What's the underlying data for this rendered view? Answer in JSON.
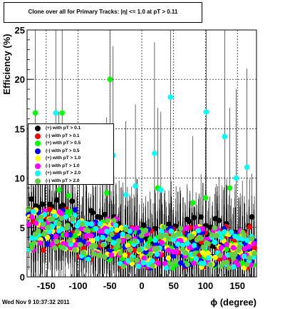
{
  "title": "Clone  over all for Primary Tracks: |η| <= 1.0 at pT > 0.11",
  "footer_date": "Wed Nov  9 10:37:32 2011",
  "colors": {
    "black": "#000000",
    "red": "#ff0000",
    "green": "#00ff00",
    "blue": "#0000ff",
    "yellow": "#ffff00",
    "magenta": "#ff00ff",
    "cyan": "#00ffff",
    "olive": "#66cc44"
  },
  "chart_data": {
    "type": "scatter",
    "title": "Clone  over all for Primary Tracks: |η| <= 1.0 at pT > 0.11",
    "xlabel": "ϕ (degree)",
    "ylabel": "Efficiency (%)",
    "xlim": [
      -180,
      180
    ],
    "ylim": [
      0,
      25
    ],
    "xticks": [
      -150,
      -100,
      -50,
      0,
      50,
      100,
      150
    ],
    "yticks": [
      0,
      5,
      10,
      15,
      20,
      25
    ],
    "grid": true,
    "legend_position": "left-middle",
    "series": [
      {
        "name": "(+) with pT > 0.1",
        "color": "#000000"
      },
      {
        "name": "(-) with pT > 0.1",
        "color": "#ff0000"
      },
      {
        "name": "(+) with pT > 0.5",
        "color": "#00ff00"
      },
      {
        "name": "(-) with pT > 0.5",
        "color": "#0000ff"
      },
      {
        "name": "(+) with pT > 1.0",
        "color": "#ffff00"
      },
      {
        "name": "(-) with pT > 1.0",
        "color": "#ff00ff"
      },
      {
        "name": "(+) with pT > 2.0",
        "color": "#00ffff"
      },
      {
        "name": "(-) with pT > 2.0",
        "color": "#66cc44"
      }
    ],
    "outliers": [
      {
        "series": 2,
        "x": -50,
        "y": 20.0
      },
      {
        "series": 6,
        "x": 45,
        "y": 18.2
      },
      {
        "series": 6,
        "x": 101,
        "y": 16.7
      },
      {
        "series": 2,
        "x": -167,
        "y": 16.6
      },
      {
        "series": 6,
        "x": -135,
        "y": 16.6
      },
      {
        "series": 2,
        "x": -125,
        "y": 16.6
      },
      {
        "series": 6,
        "x": 130,
        "y": 14.2
      },
      {
        "series": 6,
        "x": 20,
        "y": 12.5
      },
      {
        "series": 6,
        "x": -45,
        "y": 12.3
      },
      {
        "series": 6,
        "x": 165,
        "y": 11.1
      },
      {
        "series": 6,
        "x": 148,
        "y": 10.0
      },
      {
        "series": 6,
        "x": -10,
        "y": 9.2
      },
      {
        "series": 2,
        "x": 25,
        "y": 9.0
      },
      {
        "series": 2,
        "x": 138,
        "y": 9.0
      },
      {
        "series": 2,
        "x": -55,
        "y": 8.5
      },
      {
        "series": 6,
        "x": -25,
        "y": 8.3
      },
      {
        "series": 2,
        "x": 100,
        "y": 8.0
      },
      {
        "series": 6,
        "x": 30,
        "y": 8.8
      },
      {
        "series": 2,
        "x": 80,
        "y": 7.5
      },
      {
        "series": 2,
        "x": -130,
        "y": 8.8
      },
      {
        "series": 2,
        "x": -115,
        "y": 8.2
      }
    ]
  }
}
